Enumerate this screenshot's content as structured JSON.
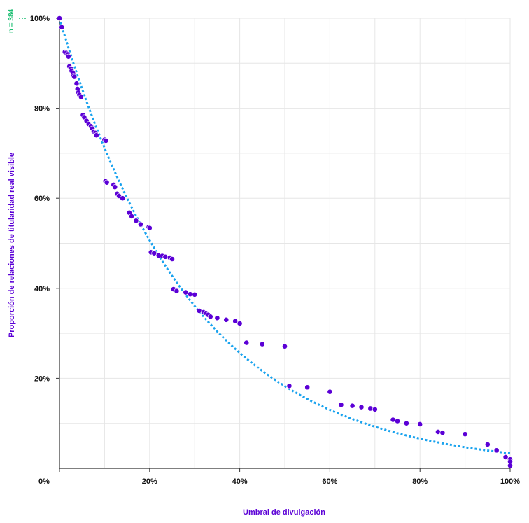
{
  "chart_data": {
    "type": "scatter",
    "xlabel": "Umbral de divulgación",
    "ylabel": "Proporción de relaciones de titularidad real visible",
    "annotation": "n = 384",
    "x_ticks": [
      "0%",
      "20%",
      "40%",
      "60%",
      "80%",
      "100%"
    ],
    "y_ticks": [
      "20%",
      "40%",
      "60%",
      "80%",
      "100%"
    ],
    "xlim": [
      0,
      100
    ],
    "ylim": [
      0,
      100
    ],
    "grid": true,
    "colors": {
      "points": "#5b00d6",
      "trend": "#1aa3ee",
      "axis_title": "#5b00d6",
      "annotation": "#1dbf73"
    },
    "series": [
      {
        "values": [
          [
            0,
            100
          ],
          [
            0.5,
            98
          ],
          [
            1.2,
            92.5
          ],
          [
            1.5,
            92.3
          ],
          [
            1.8,
            92
          ],
          [
            2,
            91.5
          ],
          [
            2.2,
            89.3
          ],
          [
            2.5,
            88.8
          ],
          [
            2.7,
            88.3
          ],
          [
            3,
            87.8
          ],
          [
            3.1,
            87.2
          ],
          [
            3.3,
            87
          ],
          [
            3.8,
            85.5
          ],
          [
            4,
            84.3
          ],
          [
            4.2,
            83.5
          ],
          [
            4.4,
            83
          ],
          [
            4.8,
            82.5
          ],
          [
            5.2,
            78.5
          ],
          [
            5.5,
            78
          ],
          [
            6,
            77.2
          ],
          [
            6.5,
            76.5
          ],
          [
            7,
            76
          ],
          [
            7.3,
            75.5
          ],
          [
            7.6,
            74.8
          ],
          [
            8,
            74.5
          ],
          [
            8.2,
            74
          ],
          [
            10,
            73
          ],
          [
            10.3,
            72.8
          ],
          [
            10.2,
            63.8
          ],
          [
            10.5,
            63.5
          ],
          [
            12,
            63
          ],
          [
            12.3,
            62.5
          ],
          [
            12.8,
            61
          ],
          [
            13.2,
            60.5
          ],
          [
            14,
            60
          ],
          [
            15.5,
            56.8
          ],
          [
            16,
            56
          ],
          [
            17,
            55
          ],
          [
            18,
            54.2
          ],
          [
            19.8,
            53.6
          ],
          [
            20,
            53.4
          ],
          [
            20.3,
            48
          ],
          [
            21,
            47.8
          ],
          [
            22,
            47.3
          ],
          [
            22.8,
            47.2
          ],
          [
            23.5,
            47
          ],
          [
            24.5,
            46.8
          ],
          [
            25,
            46.5
          ],
          [
            25.3,
            39.8
          ],
          [
            26,
            39.4
          ],
          [
            28,
            39.1
          ],
          [
            29,
            38.7
          ],
          [
            30,
            38.6
          ],
          [
            31,
            35
          ],
          [
            32,
            34.7
          ],
          [
            32.5,
            34.5
          ],
          [
            33,
            34.1
          ],
          [
            33.5,
            33.7
          ],
          [
            35,
            33.4
          ],
          [
            37,
            33
          ],
          [
            39,
            32.7
          ],
          [
            40,
            32.2
          ],
          [
            41.5,
            27.9
          ],
          [
            45,
            27.6
          ],
          [
            50,
            27.1
          ],
          [
            51,
            18.3
          ],
          [
            55,
            18
          ],
          [
            60,
            17
          ],
          [
            62.5,
            14.1
          ],
          [
            65,
            13.9
          ],
          [
            67,
            13.6
          ],
          [
            69,
            13.3
          ],
          [
            70,
            13.1
          ],
          [
            74,
            10.8
          ],
          [
            75,
            10.5
          ],
          [
            77,
            10
          ],
          [
            80,
            9.8
          ],
          [
            84,
            8.1
          ],
          [
            85,
            7.9
          ],
          [
            90,
            7.6
          ],
          [
            95,
            5.3
          ],
          [
            97,
            4
          ],
          [
            99,
            2.5
          ],
          [
            100,
            2
          ],
          [
            100,
            1.5
          ],
          [
            100,
            0.6
          ]
        ]
      }
    ],
    "trend": {
      "type": "exponential",
      "style": "dotted",
      "a": 100,
      "b": 0.034
    }
  }
}
